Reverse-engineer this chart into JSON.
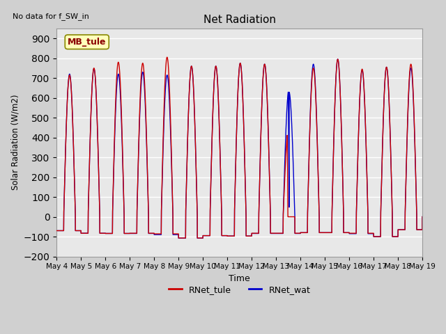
{
  "title": "Net Radiation",
  "xlabel": "Time",
  "ylabel": "Solar Radiation (W/m2)",
  "top_left_text": "No data for f_SW_in",
  "legend_label": "MB_tule",
  "ylim": [
    -200,
    950
  ],
  "yticks": [
    -200,
    -100,
    0,
    100,
    200,
    300,
    400,
    500,
    600,
    700,
    800,
    900
  ],
  "line1_label": "RNet_tule",
  "line2_label": "RNet_wat",
  "line1_color": "#cc0000",
  "line2_color": "#0000cc",
  "fig_bg": "#d0d0d0",
  "axes_bg": "#e8e8e8",
  "grid_color": "#ffffff",
  "n_days": 15,
  "start_day": 4,
  "peaks_tule": [
    715,
    750,
    780,
    775,
    805,
    760,
    760,
    775,
    770,
    415,
    750,
    795,
    745,
    755,
    770
  ],
  "peaks_wat": [
    720,
    748,
    720,
    730,
    715,
    760,
    760,
    775,
    770,
    630,
    770,
    795,
    740,
    755,
    750
  ],
  "night_tule": [
    -70,
    -83,
    -84,
    -83,
    -86,
    -107,
    -95,
    -97,
    -83,
    -83,
    -80,
    -80,
    -83,
    -100,
    -65
  ],
  "night_wat": [
    -70,
    -83,
    -84,
    -84,
    -90,
    -108,
    -95,
    -97,
    -84,
    -84,
    -80,
    -80,
    -85,
    -100,
    -65
  ],
  "day_start": 0.29,
  "day_end": 0.77,
  "day13_tule_peak1": 415,
  "day13_tule_break": 0.46,
  "day13_wat_peak1": 630,
  "day13_wat_break": 0.5
}
